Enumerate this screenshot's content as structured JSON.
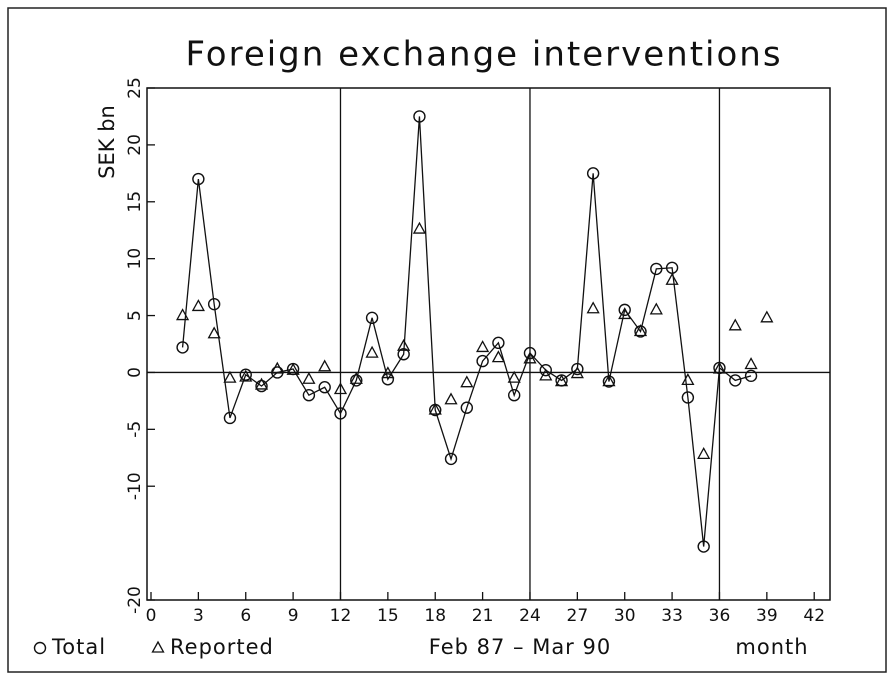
{
  "chart_data": {
    "type": "scatter",
    "title": "Foreign exchange interventions",
    "ylabel": "SEK bn",
    "xlabel": "Feb 87 – Mar 90",
    "xunit": "month",
    "xlim": [
      0,
      43
    ],
    "ylim": [
      -20,
      25
    ],
    "xticks": [
      0,
      3,
      6,
      9,
      12,
      15,
      18,
      21,
      24,
      27,
      30,
      33,
      36,
      39,
      42
    ],
    "yticks": [
      -20,
      -10,
      -5,
      0,
      5,
      10,
      15,
      20,
      25
    ],
    "reference_x": [
      12,
      24,
      36
    ],
    "reference_y": 0,
    "legend": "bottom-left",
    "series": [
      {
        "name": "Total",
        "marker": "circle",
        "line": true,
        "color": "#111",
        "x": [
          2,
          3,
          4,
          5,
          6,
          7,
          8,
          9,
          10,
          11,
          12,
          13,
          14,
          15,
          16,
          17,
          18,
          19,
          20,
          21,
          22,
          23,
          24,
          25,
          26,
          27,
          28,
          29,
          30,
          31,
          32,
          33,
          34,
          35,
          36,
          37,
          38
        ],
        "values": [
          2.2,
          17,
          6,
          -4,
          -0.2,
          -1.2,
          0,
          0.3,
          -2,
          -1.3,
          -3.6,
          -0.7,
          4.8,
          -0.6,
          1.6,
          22.5,
          -3.3,
          -7.6,
          -3.1,
          1,
          2.6,
          -2,
          1.7,
          0.2,
          -0.7,
          0.3,
          17.5,
          -0.8,
          5.5,
          3.6,
          9.1,
          9.2,
          -2.2,
          -15.3,
          0.4,
          -0.7,
          -0.3
        ]
      },
      {
        "name": "Reported",
        "marker": "triangle",
        "line": false,
        "color": "#111",
        "x": [
          2,
          3,
          4,
          5,
          6,
          7,
          8,
          9,
          10,
          11,
          12,
          13,
          14,
          15,
          16,
          17,
          18,
          19,
          20,
          21,
          22,
          23,
          24,
          25,
          26,
          27,
          28,
          29,
          30,
          31,
          32,
          33,
          34,
          35,
          36,
          37,
          38,
          39
        ],
        "values": [
          5,
          5.8,
          3.4,
          -0.5,
          -0.4,
          -1.1,
          0.3,
          0.2,
          -0.6,
          0.5,
          -1.5,
          -0.6,
          1.7,
          -0.1,
          2.3,
          12.6,
          -3.3,
          -2.4,
          -0.9,
          2.2,
          1.3,
          -0.5,
          1.2,
          -0.3,
          -0.8,
          -0.1,
          5.6,
          -0.8,
          5.1,
          3.6,
          5.5,
          8.1,
          -0.7,
          -7.2,
          0.3,
          4.1,
          0.7,
          4.8
        ]
      }
    ]
  }
}
